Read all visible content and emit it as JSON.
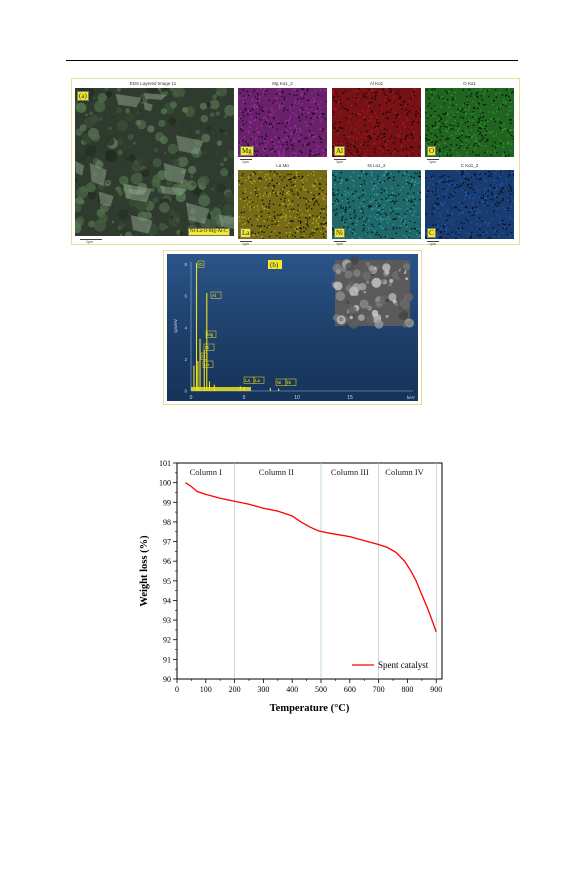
{
  "figure_a": {
    "tag": "(a)",
    "main_title": "EDS Layered Image 11",
    "main_formula": "Ni-La-O-Mg-Al-C",
    "scale_label": "1μm",
    "maps": [
      {
        "title": "Mg Kα1_2",
        "symbol": "Mg",
        "color": "#b52fb6"
      },
      {
        "title": "Al Kα1",
        "symbol": "Al",
        "color": "#c8141c"
      },
      {
        "title": "O Kα1",
        "symbol": "O",
        "color": "#2fa82d"
      },
      {
        "title": "La Mα",
        "symbol": "La",
        "color": "#c8b51e"
      },
      {
        "title": "Ni Lα1_2",
        "symbol": "Ni",
        "color": "#2caeb0"
      },
      {
        "title": "C Kα1_2",
        "symbol": "C",
        "color": "#1f5fc0"
      }
    ]
  },
  "figure_b": {
    "tag": "(b)",
    "ylabel": "cps/eV",
    "xlabel": "keV",
    "x_ticks": [
      "0",
      "5",
      "10",
      "15"
    ],
    "y_ticks": [
      "0",
      "2",
      "4",
      "6",
      "8"
    ],
    "peak_labels": [
      "O",
      "Al",
      "Mg",
      "Ni",
      "C",
      "La",
      "La",
      "La",
      "Ni",
      "Ni"
    ]
  },
  "chart_data": {
    "type": "line",
    "xlabel": "Temperature (°C)",
    "ylabel": "Weight loss (%)",
    "xlim": [
      0,
      920
    ],
    "ylim": [
      90,
      101
    ],
    "x_ticks": [
      0,
      100,
      200,
      300,
      400,
      500,
      600,
      700,
      800,
      900
    ],
    "y_ticks": [
      90,
      91,
      92,
      93,
      94,
      95,
      96,
      97,
      98,
      99,
      100,
      101
    ],
    "column_dividers": [
      200,
      500,
      700,
      900
    ],
    "columns": [
      {
        "label": "Column I",
        "x": 100
      },
      {
        "label": "Column II",
        "x": 345
      },
      {
        "label": "Column III",
        "x": 600
      },
      {
        "label": "Column IV",
        "x": 790
      }
    ],
    "series": [
      {
        "name": "Spent catalyst",
        "color": "#ff0000",
        "x": [
          30,
          50,
          70,
          100,
          150,
          200,
          250,
          300,
          350,
          400,
          430,
          460,
          490,
          520,
          560,
          600,
          650,
          700,
          730,
          760,
          790,
          810,
          830,
          850,
          870,
          890,
          900
        ],
        "y": [
          100.0,
          99.8,
          99.55,
          99.4,
          99.2,
          99.05,
          98.9,
          98.7,
          98.55,
          98.3,
          98.0,
          97.75,
          97.55,
          97.45,
          97.35,
          97.25,
          97.05,
          96.85,
          96.7,
          96.45,
          96.0,
          95.55,
          95.0,
          94.3,
          93.6,
          92.8,
          92.4
        ]
      }
    ],
    "legend_position": "bottom-right"
  }
}
